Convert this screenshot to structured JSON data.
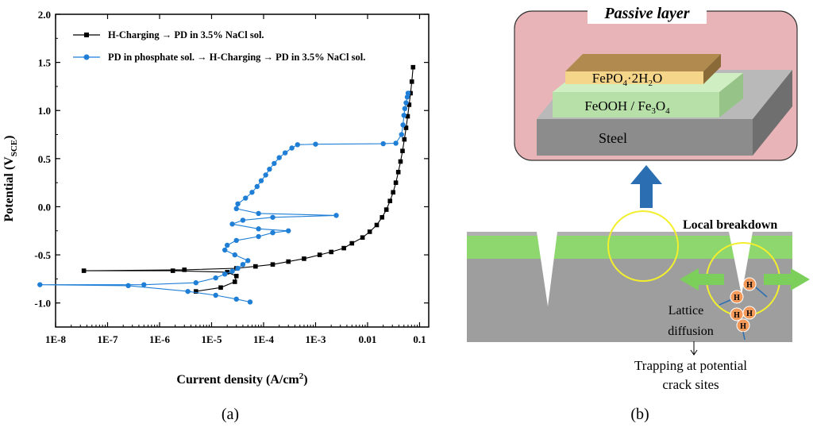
{
  "chart_data": {
    "type": "line",
    "title": "",
    "xlabel": "Current density (A/cm",
    "xlabel_sup": "2",
    "xlabel_end": ")",
    "ylabel": "Potential (V",
    "ylabel_sub": "SCE",
    "ylabel_end": ")",
    "xscale": "log",
    "xlim": [
      1e-08,
      0.15
    ],
    "ylim": [
      -1.25,
      2.0
    ],
    "xticks": [
      "1E-8",
      "1E-7",
      "1E-6",
      "1E-5",
      "1E-4",
      "1E-3",
      "0.01",
      "0.1"
    ],
    "yticks": [
      "2.0",
      "1.5",
      "1.0",
      "0.5",
      "0.0",
      "-0.5",
      "-1.0"
    ],
    "legend_position": "top-left",
    "series": [
      {
        "name": "H-Charging → PD in 3.5% NaCl sol.",
        "color": "#000000",
        "marker": "square",
        "points": [
          [
            5e-06,
            -0.88
          ],
          [
            1.5e-05,
            -0.84
          ],
          [
            2.8e-05,
            -0.78
          ],
          [
            3e-05,
            -0.72
          ],
          [
            2e-05,
            -0.68
          ],
          [
            1.8e-06,
            -0.665
          ],
          [
            3.5e-08,
            -0.665
          ],
          [
            3e-06,
            -0.655
          ],
          [
            3e-05,
            -0.64
          ],
          [
            7e-05,
            -0.62
          ],
          [
            0.00015,
            -0.6
          ],
          [
            0.0003,
            -0.57
          ],
          [
            0.0006,
            -0.54
          ],
          [
            0.0012,
            -0.5
          ],
          [
            0.002,
            -0.47
          ],
          [
            0.0035,
            -0.43
          ],
          [
            0.005,
            -0.38
          ],
          [
            0.008,
            -0.32
          ],
          [
            0.011,
            -0.26
          ],
          [
            0.015,
            -0.19
          ],
          [
            0.019,
            -0.11
          ],
          [
            0.023,
            -0.03
          ],
          [
            0.027,
            0.06
          ],
          [
            0.031,
            0.15
          ],
          [
            0.035,
            0.25
          ],
          [
            0.039,
            0.36
          ],
          [
            0.043,
            0.47
          ],
          [
            0.047,
            0.58
          ],
          [
            0.051,
            0.7
          ],
          [
            0.055,
            0.82
          ],
          [
            0.059,
            0.94
          ],
          [
            0.063,
            1.06
          ],
          [
            0.067,
            1.18
          ],
          [
            0.071,
            1.3
          ],
          [
            0.075,
            1.45
          ]
        ]
      },
      {
        "name": "PD in phosphate sol. → H-Charging → PD in 3.5% NaCl sol.",
        "color": "#1f7fd6",
        "marker": "circle",
        "points": [
          [
            5.5e-05,
            -0.99
          ],
          [
            3e-05,
            -0.96
          ],
          [
            1.2e-05,
            -0.92
          ],
          [
            3.5e-06,
            -0.88
          ],
          [
            2.5e-07,
            -0.82
          ],
          [
            5e-09,
            -0.81
          ],
          [
            5e-07,
            -0.81
          ],
          [
            5e-06,
            -0.79
          ],
          [
            1.2e-05,
            -0.74
          ],
          [
            1.8e-05,
            -0.7
          ],
          [
            2.5e-05,
            -0.67
          ],
          [
            3.2e-05,
            -0.64
          ],
          [
            4e-05,
            -0.6
          ],
          [
            5e-05,
            -0.56
          ],
          [
            2.8e-05,
            -0.5
          ],
          [
            1.8e-05,
            -0.45
          ],
          [
            2e-05,
            -0.4
          ],
          [
            3e-05,
            -0.35
          ],
          [
            8e-05,
            -0.31
          ],
          [
            0.00015,
            -0.27
          ],
          [
            0.0003,
            -0.25
          ],
          [
            8e-05,
            -0.23
          ],
          [
            2.5e-05,
            -0.18
          ],
          [
            4e-05,
            -0.14
          ],
          [
            0.00015,
            -0.11
          ],
          [
            0.0025,
            -0.09
          ],
          [
            8e-05,
            -0.07
          ],
          [
            3e-05,
            -0.02
          ],
          [
            3.2e-05,
            0.03
          ],
          [
            4.5e-05,
            0.09
          ],
          [
            6e-05,
            0.15
          ],
          [
            7.5e-05,
            0.21
          ],
          [
            9e-05,
            0.27
          ],
          [
            0.00011,
            0.33
          ],
          [
            0.00013,
            0.39
          ],
          [
            0.00016,
            0.45
          ],
          [
            0.0002,
            0.51
          ],
          [
            0.00026,
            0.56
          ],
          [
            0.00035,
            0.61
          ],
          [
            0.00045,
            0.645
          ],
          [
            0.001,
            0.65
          ],
          [
            0.02,
            0.655
          ],
          [
            0.035,
            0.66
          ],
          [
            0.045,
            0.75
          ],
          [
            0.048,
            0.85
          ],
          [
            0.05,
            0.95
          ],
          [
            0.052,
            1.02
          ],
          [
            0.055,
            1.08
          ],
          [
            0.058,
            1.14
          ],
          [
            0.06,
            1.18
          ]
        ]
      }
    ]
  },
  "caption_a": "(a)",
  "caption_b": "(b)",
  "diagram": {
    "passive_title": "Passive layer",
    "layer_top": "FePO",
    "layer_top_sub": "4",
    "layer_top_end": "·2H",
    "layer_top_sub2": "2",
    "layer_top_end2": "O",
    "layer_mid": "FeOOH / Fe",
    "layer_mid_sub": "3",
    "layer_mid_end": "O",
    "layer_mid_sub2": "4",
    "layer_base": "Steel",
    "local_breakdown": "Local breakdown",
    "hydrogen": "H",
    "lattice": "Lattice",
    "diffusion": "diffusion",
    "trapping_1": "Trapping at potential",
    "trapping_2": "crack sites",
    "colors": {
      "panel_bg": "#e8b4b8",
      "top_layer": "#b08a4e",
      "top_layer_band": "#f5d58a",
      "mid_layer": "#b6e0a8",
      "steel": "#8c8c8c",
      "steel_top": "#b9b9b9",
      "surface_green": "#8ed66e",
      "substrate": "#9e9e9e",
      "arrow_blue": "#2b6fb2",
      "arrow_green": "#7ccf5a",
      "circle_yellow": "#f2ef2e",
      "h_atom": "#f39a5a"
    }
  }
}
